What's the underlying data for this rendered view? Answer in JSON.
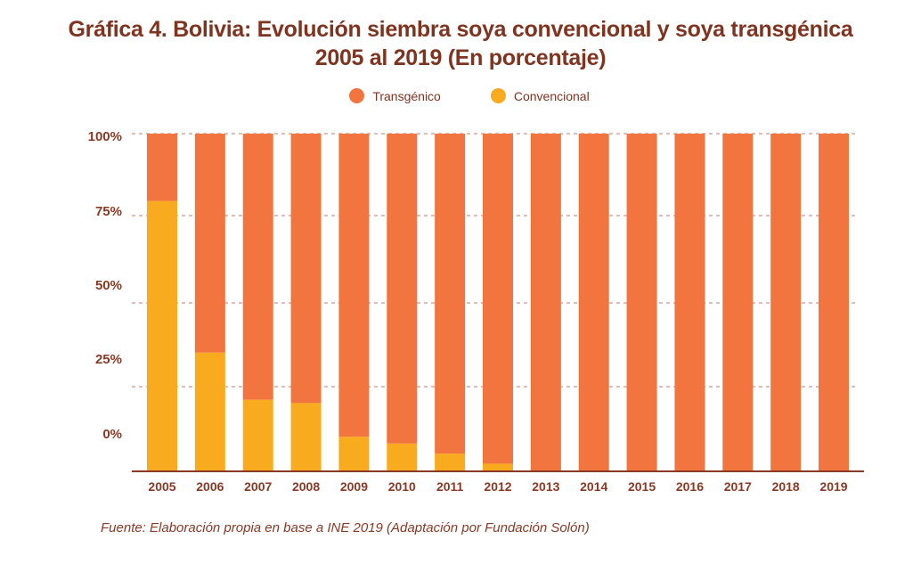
{
  "chart_data": {
    "type": "bar",
    "stacked": true,
    "normalized": true,
    "title": "Gráfica 4. Bolivia: Evolución siembra soya convencional y soya transgénica",
    "subtitle": "2005 al 2019 (En porcentaje)",
    "xlabel": "",
    "ylabel": "",
    "ylim": [
      0,
      100
    ],
    "y_ticks": [
      "100%",
      "75%",
      "50%",
      "25%",
      "0%"
    ],
    "grid": true,
    "legend_position": "top-center",
    "categories": [
      "2005",
      "2006",
      "2007",
      "2008",
      "2009",
      "2010",
      "2011",
      "2012",
      "2013",
      "2014",
      "2015",
      "2016",
      "2017",
      "2018",
      "2019"
    ],
    "series": [
      {
        "name": "Convencional",
        "color": "#f9ab1f",
        "values": [
          80,
          35,
          21,
          20,
          10,
          8,
          5,
          2,
          0,
          0,
          0,
          0,
          0,
          0,
          0
        ]
      },
      {
        "name": "Transgénico",
        "color": "#f2743e",
        "values": [
          20,
          65,
          79,
          80,
          90,
          92,
          95,
          98,
          100,
          100,
          100,
          100,
          100,
          100,
          100
        ]
      }
    ],
    "legend": [
      {
        "label": "Transgénico",
        "color": "#f2743e"
      },
      {
        "label": "Convencional",
        "color": "#f9ab1f"
      }
    ],
    "source": "Fuente: Elaboración propia en base a INE 2019 (Adaptación por Fundación Solón)"
  },
  "colors": {
    "text": "#7f3420",
    "axis": "#8a3a24",
    "grid": "#c9968a"
  }
}
